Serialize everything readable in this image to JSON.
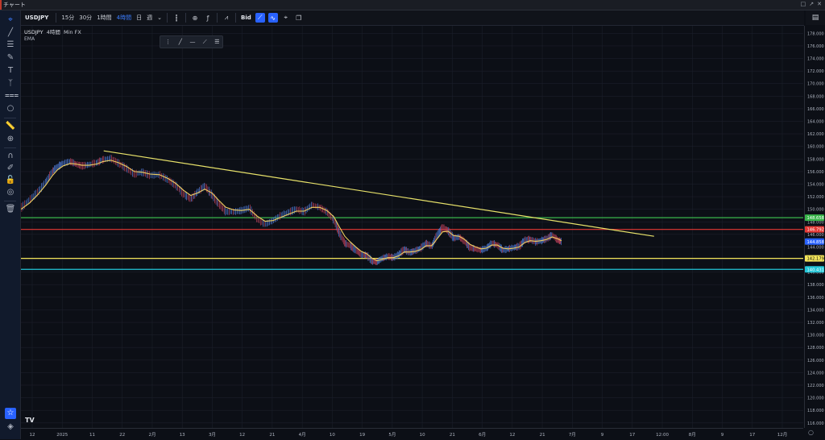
{
  "window": {
    "title": "チャート",
    "controls": [
      "□",
      "↗",
      "✕"
    ]
  },
  "toolbar": {
    "symbol": "USDJPY",
    "timeframes": [
      {
        "label": "15分",
        "active": false
      },
      {
        "label": "30分",
        "active": false
      },
      {
        "label": "1時間",
        "active": false
      },
      {
        "label": "4時間",
        "active": true
      },
      {
        "label": "日",
        "active": false
      },
      {
        "label": "週",
        "active": false
      }
    ],
    "dropdown": "⌄",
    "price_type": "Bid"
  },
  "legend": {
    "symbol": "USDJPY",
    "interval": "4時間",
    "source": "Min FX",
    "indicator": "EMA"
  },
  "colors": {
    "background": "#0c0f16",
    "grid": "#1b1f2a",
    "trendline": "#e8e26a",
    "ema": "#f0d060",
    "candle_up": "#4f7bd6",
    "candle_down": "#b8405a",
    "green_line": "#39b54a",
    "red_line": "#e53935",
    "yellow_line": "#f2e45a",
    "cyan_line": "#22c6d8",
    "current_price": "#2962ff"
  },
  "chart_data": {
    "type": "line",
    "price_axis_ticks": [
      "178.000",
      "176.000",
      "174.000",
      "172.000",
      "170.000",
      "168.000",
      "166.000",
      "164.000",
      "162.000",
      "160.000",
      "158.000",
      "156.000",
      "154.000",
      "152.000",
      "150.000",
      "148.000",
      "146.000",
      "144.000",
      "142.000",
      "140.000",
      "138.000",
      "136.000",
      "134.000",
      "132.000",
      "130.000",
      "128.000",
      "126.000",
      "124.000",
      "122.000",
      "120.000",
      "118.000",
      "116.000"
    ],
    "ylim": [
      115.2,
      179.2
    ],
    "time_axis_labels": [
      "12",
      "2025",
      "11",
      "22",
      "2月",
      "13",
      "3月",
      "12",
      "21",
      "4月",
      "10",
      "19",
      "5月",
      "10",
      "21",
      "6月",
      "12",
      "21",
      "7月",
      "9",
      "17",
      "12:00",
      "8月",
      "9",
      "17",
      "12月"
    ],
    "horizontal_levels": [
      {
        "label": "148.658",
        "value": 148.658,
        "color": "#39b54a"
      },
      {
        "label": "146.792",
        "value": 146.792,
        "color": "#e53935"
      },
      {
        "label": "142.179",
        "value": 142.179,
        "color": "#f2e45a"
      },
      {
        "label": "140.431",
        "value": 140.431,
        "color": "#22c6d8"
      }
    ],
    "current_price": {
      "label": "144.858",
      "value": 144.858
    },
    "trendline": {
      "from": [
        0.1058,
        159.3
      ],
      "to": [
        0.8093,
        145.7
      ]
    },
    "price_series": [
      [
        0.0,
        150.2
      ],
      [
        0.011,
        151.5
      ],
      [
        0.022,
        152.8
      ],
      [
        0.032,
        154.4
      ],
      [
        0.04,
        156.0
      ],
      [
        0.047,
        156.8
      ],
      [
        0.054,
        157.3
      ],
      [
        0.063,
        157.6
      ],
      [
        0.07,
        157.2
      ],
      [
        0.078,
        156.9
      ],
      [
        0.087,
        157.1
      ],
      [
        0.097,
        157.4
      ],
      [
        0.105,
        157.9
      ],
      [
        0.115,
        158.1
      ],
      [
        0.125,
        157.3
      ],
      [
        0.135,
        156.5
      ],
      [
        0.145,
        155.6
      ],
      [
        0.155,
        155.9
      ],
      [
        0.165,
        155.4
      ],
      [
        0.177,
        155.5
      ],
      [
        0.188,
        154.7
      ],
      [
        0.198,
        153.8
      ],
      [
        0.208,
        152.4
      ],
      [
        0.217,
        151.6
      ],
      [
        0.226,
        152.8
      ],
      [
        0.235,
        153.7
      ],
      [
        0.244,
        152.3
      ],
      [
        0.253,
        150.8
      ],
      [
        0.262,
        149.6
      ],
      [
        0.272,
        149.6
      ],
      [
        0.282,
        149.8
      ],
      [
        0.292,
        150.2
      ],
      [
        0.302,
        148.4
      ],
      [
        0.312,
        147.6
      ],
      [
        0.322,
        148.2
      ],
      [
        0.332,
        149.0
      ],
      [
        0.342,
        149.5
      ],
      [
        0.352,
        150.0
      ],
      [
        0.362,
        149.6
      ],
      [
        0.372,
        150.7
      ],
      [
        0.382,
        150.3
      ],
      [
        0.391,
        149.6
      ],
      [
        0.4,
        148.3
      ],
      [
        0.407,
        146.2
      ],
      [
        0.414,
        144.6
      ],
      [
        0.421,
        144.2
      ],
      [
        0.428,
        143.5
      ],
      [
        0.435,
        142.8
      ],
      [
        0.442,
        142.7
      ],
      [
        0.449,
        141.7
      ],
      [
        0.455,
        141.6
      ],
      [
        0.462,
        142.2
      ],
      [
        0.469,
        142.5
      ],
      [
        0.476,
        142.3
      ],
      [
        0.483,
        142.8
      ],
      [
        0.49,
        143.6
      ],
      [
        0.497,
        143.1
      ],
      [
        0.504,
        143.4
      ],
      [
        0.511,
        143.8
      ],
      [
        0.518,
        144.6
      ],
      [
        0.525,
        144.1
      ],
      [
        0.532,
        145.9
      ],
      [
        0.539,
        147.1
      ],
      [
        0.546,
        146.6
      ],
      [
        0.553,
        145.4
      ],
      [
        0.56,
        145.6
      ],
      [
        0.567,
        144.9
      ],
      [
        0.574,
        143.9
      ],
      [
        0.581,
        143.7
      ],
      [
        0.588,
        143.5
      ],
      [
        0.595,
        143.8
      ],
      [
        0.602,
        144.6
      ],
      [
        0.609,
        144.3
      ],
      [
        0.616,
        143.5
      ],
      [
        0.623,
        143.7
      ],
      [
        0.63,
        143.9
      ],
      [
        0.637,
        144.1
      ],
      [
        0.644,
        145.1
      ],
      [
        0.651,
        145.2
      ],
      [
        0.658,
        144.8
      ],
      [
        0.665,
        145.0
      ],
      [
        0.672,
        145.3
      ],
      [
        0.679,
        145.9
      ],
      [
        0.686,
        145.1
      ],
      [
        0.691,
        144.858
      ]
    ],
    "ema_series": [
      [
        0.0,
        150.0
      ],
      [
        0.011,
        151.0
      ],
      [
        0.022,
        152.4
      ],
      [
        0.032,
        153.9
      ],
      [
        0.04,
        155.3
      ],
      [
        0.047,
        156.3
      ],
      [
        0.054,
        156.9
      ],
      [
        0.063,
        157.3
      ],
      [
        0.07,
        157.2
      ],
      [
        0.078,
        157.0
      ],
      [
        0.087,
        157.0
      ],
      [
        0.097,
        157.2
      ],
      [
        0.105,
        157.6
      ],
      [
        0.115,
        157.8
      ],
      [
        0.125,
        157.4
      ],
      [
        0.135,
        156.8
      ],
      [
        0.145,
        156.0
      ],
      [
        0.155,
        155.9
      ],
      [
        0.165,
        155.6
      ],
      [
        0.177,
        155.5
      ],
      [
        0.188,
        154.9
      ],
      [
        0.198,
        154.1
      ],
      [
        0.208,
        153.0
      ],
      [
        0.217,
        152.2
      ],
      [
        0.226,
        152.6
      ],
      [
        0.235,
        153.2
      ],
      [
        0.244,
        152.6
      ],
      [
        0.253,
        151.4
      ],
      [
        0.262,
        150.3
      ],
      [
        0.272,
        149.9
      ],
      [
        0.282,
        149.8
      ],
      [
        0.292,
        150.0
      ],
      [
        0.302,
        148.9
      ],
      [
        0.312,
        148.1
      ],
      [
        0.322,
        148.2
      ],
      [
        0.332,
        148.7
      ],
      [
        0.342,
        149.2
      ],
      [
        0.352,
        149.7
      ],
      [
        0.362,
        149.7
      ],
      [
        0.372,
        150.3
      ],
      [
        0.382,
        150.3
      ],
      [
        0.391,
        149.8
      ],
      [
        0.4,
        148.8
      ],
      [
        0.407,
        147.2
      ],
      [
        0.414,
        145.7
      ],
      [
        0.421,
        144.8
      ],
      [
        0.428,
        144.0
      ],
      [
        0.435,
        143.3
      ],
      [
        0.442,
        142.9
      ],
      [
        0.449,
        142.2
      ],
      [
        0.455,
        141.8
      ],
      [
        0.462,
        142.0
      ],
      [
        0.469,
        142.3
      ],
      [
        0.476,
        142.3
      ],
      [
        0.483,
        142.6
      ],
      [
        0.49,
        143.2
      ],
      [
        0.497,
        143.2
      ],
      [
        0.504,
        143.3
      ],
      [
        0.511,
        143.6
      ],
      [
        0.518,
        144.2
      ],
      [
        0.525,
        144.2
      ],
      [
        0.532,
        145.3
      ],
      [
        0.539,
        146.4
      ],
      [
        0.546,
        146.5
      ],
      [
        0.553,
        145.8
      ],
      [
        0.56,
        145.7
      ],
      [
        0.567,
        145.2
      ],
      [
        0.574,
        144.4
      ],
      [
        0.581,
        144.0
      ],
      [
        0.588,
        143.7
      ],
      [
        0.595,
        143.8
      ],
      [
        0.602,
        144.3
      ],
      [
        0.609,
        144.3
      ],
      [
        0.616,
        143.8
      ],
      [
        0.623,
        143.7
      ],
      [
        0.63,
        143.8
      ],
      [
        0.637,
        144.0
      ],
      [
        0.644,
        144.7
      ],
      [
        0.651,
        145.0
      ],
      [
        0.658,
        144.9
      ],
      [
        0.665,
        145.0
      ],
      [
        0.672,
        145.2
      ],
      [
        0.679,
        145.6
      ],
      [
        0.686,
        145.3
      ],
      [
        0.691,
        145.0
      ]
    ]
  }
}
